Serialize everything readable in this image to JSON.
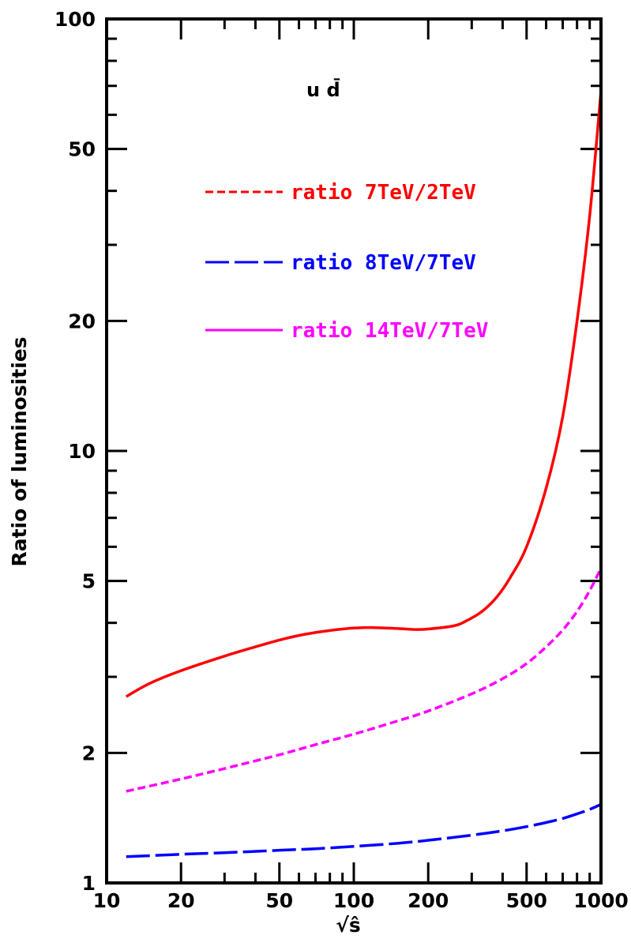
{
  "chart_data": {
    "type": "line",
    "xlabel": "√ŝ",
    "ylabel": "Ratio of luminosities",
    "xscale": "log",
    "yscale": "log",
    "xlim": [
      10,
      1000
    ],
    "ylim": [
      1,
      100
    ],
    "x_ticks": [
      "10",
      "20",
      "50",
      "100",
      "200",
      "500",
      "1000"
    ],
    "y_ticks": [
      "1",
      "2",
      "5",
      "10",
      "20",
      "50",
      "100"
    ],
    "annotation": "u d̄",
    "legend_position": "top-left",
    "series": [
      {
        "name": "ratio 7TeV/2TeV",
        "legend_style": "dashed",
        "line_style": "solid",
        "color": "#ff0000",
        "x": [
          12,
          15,
          20,
          30,
          40,
          50,
          60,
          70,
          80,
          90,
          100,
          120,
          150,
          180,
          200,
          250,
          280,
          330,
          380,
          430,
          500,
          600,
          700,
          800,
          900,
          1000
        ],
        "y": [
          2.7,
          2.9,
          3.1,
          3.35,
          3.52,
          3.65,
          3.74,
          3.8,
          3.84,
          3.87,
          3.89,
          3.9,
          3.88,
          3.86,
          3.87,
          3.93,
          4.02,
          4.25,
          4.6,
          5.1,
          6.0,
          8.2,
          12.0,
          20.0,
          35.0,
          68.0
        ]
      },
      {
        "name": "ratio 8TeV/7TeV",
        "legend_style": "long-dashed",
        "line_style": "long-dashed",
        "color": "#0000ff",
        "x": [
          12,
          20,
          30,
          50,
          70,
          100,
          150,
          200,
          300,
          400,
          500,
          600,
          700,
          800,
          900,
          1000
        ],
        "y": [
          1.15,
          1.165,
          1.175,
          1.19,
          1.2,
          1.215,
          1.235,
          1.255,
          1.29,
          1.32,
          1.35,
          1.38,
          1.41,
          1.445,
          1.48,
          1.52
        ]
      },
      {
        "name": "ratio 14TeV/7TeV",
        "legend_style": "solid",
        "line_style": "dashed",
        "color": "#ff00ff",
        "x": [
          12,
          20,
          30,
          50,
          70,
          100,
          150,
          200,
          300,
          400,
          500,
          600,
          700,
          800,
          900,
          1000
        ],
        "y": [
          1.63,
          1.74,
          1.84,
          1.98,
          2.09,
          2.21,
          2.37,
          2.5,
          2.74,
          2.97,
          3.22,
          3.52,
          3.85,
          4.25,
          4.75,
          5.35
        ]
      }
    ]
  }
}
